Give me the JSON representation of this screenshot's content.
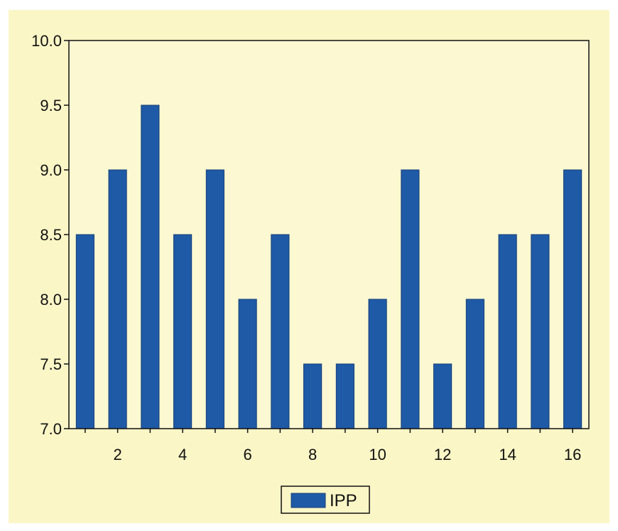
{
  "chart_data": {
    "type": "bar",
    "title": "",
    "xlabel": "",
    "ylabel": "",
    "categories": [
      1,
      2,
      3,
      4,
      5,
      6,
      7,
      8,
      9,
      10,
      11,
      12,
      13,
      14,
      15,
      16
    ],
    "x_tick_labels": [
      "2",
      "4",
      "6",
      "8",
      "10",
      "12",
      "14",
      "16"
    ],
    "y_tick_labels": [
      "7.0",
      "7.5",
      "8.0",
      "8.5",
      "9.0",
      "9.5",
      "10.0"
    ],
    "ylim": [
      7.0,
      10.0
    ],
    "series": [
      {
        "name": "IPP",
        "color": "#1f5aa6",
        "values": [
          8.5,
          9.0,
          9.5,
          8.5,
          9.0,
          8.0,
          8.5,
          7.5,
          7.5,
          8.0,
          9.0,
          7.5,
          8.0,
          8.5,
          8.5,
          9.0
        ]
      }
    ],
    "grid": false,
    "legend_position": "bottom-center",
    "background_color": "#fbf6c6",
    "plot_background_color": "#fcf8d2"
  }
}
